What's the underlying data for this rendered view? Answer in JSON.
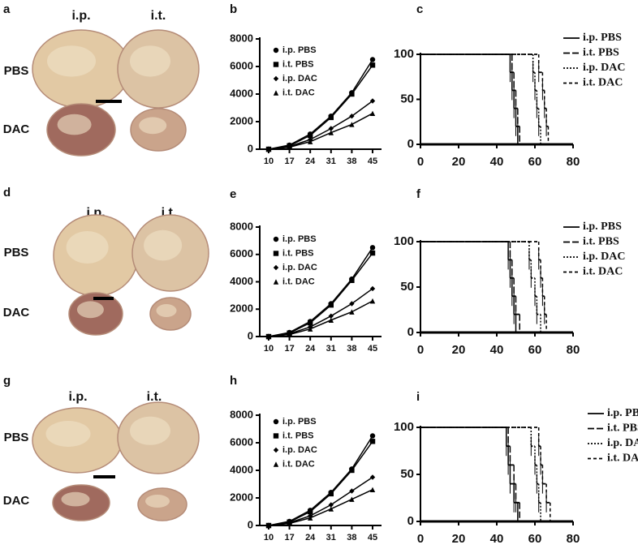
{
  "photo_panels": [
    {
      "label": "a",
      "columns": [
        "i.p.",
        "i.t."
      ],
      "rows": [
        "PBS",
        "DAC"
      ]
    },
    {
      "label": "d",
      "columns": [
        "i.p.",
        "i.t."
      ],
      "rows": [
        "PBS",
        "DAC"
      ]
    },
    {
      "label": "g",
      "columns": [
        "i.p.",
        "i.t."
      ],
      "rows": [
        "PBS",
        "DAC"
      ]
    }
  ],
  "chart_data": [
    {
      "type": "line",
      "title": "b",
      "x": [
        10,
        17,
        24,
        31,
        38,
        45
      ],
      "xlim": [
        7,
        48
      ],
      "xticks": [
        10,
        17,
        24,
        31,
        38,
        45
      ],
      "ylim": [
        0,
        8000
      ],
      "yticks": [
        0,
        2000,
        4000,
        6000,
        8000
      ],
      "series": [
        {
          "name": "i.p. PBS",
          "color": "#000000",
          "marker": "circle",
          "values": [
            0,
            300,
            1100,
            2400,
            4100,
            6500
          ]
        },
        {
          "name": "i.t. PBS",
          "color": "#000000",
          "marker": "square",
          "values": [
            0,
            250,
            1000,
            2300,
            4000,
            6100
          ]
        },
        {
          "name": "i.p. DAC",
          "color": "#000000",
          "marker": "diamond",
          "values": [
            0,
            200,
            700,
            1500,
            2400,
            3500
          ]
        },
        {
          "name": "i.t. DAC",
          "color": "#000000",
          "marker": "triangle",
          "values": [
            0,
            150,
            550,
            1200,
            1800,
            2600
          ]
        }
      ]
    },
    {
      "type": "step",
      "title": "c",
      "xlim": [
        0,
        80
      ],
      "xticks": [
        0,
        20,
        40,
        60,
        80
      ],
      "ylim": [
        0,
        100
      ],
      "yticks": [
        0,
        50,
        100
      ],
      "series": [
        {
          "name": "i.p. PBS",
          "color": "#000000",
          "dash": "solid",
          "x": [
            0,
            47,
            48,
            49,
            50,
            51
          ],
          "values": [
            100,
            80,
            60,
            40,
            20,
            0
          ]
        },
        {
          "name": "i.t. PBS",
          "color": "#000000",
          "dash": "long",
          "x": [
            0,
            48,
            49,
            50,
            51,
            52
          ],
          "values": [
            100,
            80,
            60,
            40,
            20,
            0
          ]
        },
        {
          "name": "i.p. DAC",
          "color": "#000000",
          "dash": "dotted",
          "x": [
            0,
            59,
            60,
            61,
            62,
            63
          ],
          "values": [
            100,
            80,
            60,
            40,
            20,
            0
          ]
        },
        {
          "name": "i.t. DAC",
          "color": "#000000",
          "dash": "short",
          "x": [
            0,
            62,
            64,
            65,
            66,
            67
          ],
          "values": [
            100,
            80,
            60,
            40,
            20,
            0
          ]
        }
      ]
    },
    {
      "type": "line",
      "title": "e",
      "x": [
        10,
        17,
        24,
        31,
        38,
        45
      ],
      "xlim": [
        7,
        48
      ],
      "xticks": [
        10,
        17,
        24,
        31,
        38,
        45
      ],
      "ylim": [
        0,
        8000
      ],
      "yticks": [
        0,
        2000,
        4000,
        6000,
        8000
      ],
      "series": [
        {
          "name": "i.p. PBS",
          "color": "#000000",
          "marker": "circle",
          "values": [
            0,
            300,
            1100,
            2400,
            4200,
            6500
          ]
        },
        {
          "name": "i.t. PBS",
          "color": "#000000",
          "marker": "square",
          "values": [
            0,
            250,
            1000,
            2300,
            4100,
            6100
          ]
        },
        {
          "name": "i.p. DAC",
          "color": "#000000",
          "marker": "diamond",
          "values": [
            0,
            200,
            700,
            1500,
            2400,
            3500
          ]
        },
        {
          "name": "i.t. DAC",
          "color": "#000000",
          "marker": "triangle",
          "values": [
            0,
            150,
            550,
            1200,
            1800,
            2600
          ]
        }
      ]
    },
    {
      "type": "step",
      "title": "f",
      "xlim": [
        0,
        80
      ],
      "xticks": [
        0,
        20,
        40,
        60,
        80
      ],
      "ylim": [
        0,
        100
      ],
      "yticks": [
        0,
        50,
        100
      ],
      "series": [
        {
          "name": "i.p. PBS",
          "color": "#000000",
          "dash": "solid",
          "x": [
            0,
            46,
            47,
            48,
            49,
            50
          ],
          "values": [
            100,
            80,
            60,
            40,
            20,
            0
          ]
        },
        {
          "name": "i.t. PBS",
          "color": "#000000",
          "dash": "long",
          "x": [
            0,
            47,
            48,
            49,
            50,
            52
          ],
          "values": [
            100,
            80,
            60,
            40,
            20,
            0
          ]
        },
        {
          "name": "i.p. DAC",
          "color": "#000000",
          "dash": "dotted",
          "x": [
            0,
            57,
            58,
            60,
            61,
            63
          ],
          "values": [
            100,
            80,
            60,
            40,
            20,
            0
          ]
        },
        {
          "name": "i.t. DAC",
          "color": "#000000",
          "dash": "short",
          "x": [
            0,
            62,
            63,
            64,
            65,
            66
          ],
          "values": [
            100,
            80,
            60,
            40,
            20,
            0
          ]
        }
      ]
    },
    {
      "type": "line",
      "title": "h",
      "x": [
        10,
        17,
        24,
        31,
        38,
        45
      ],
      "xlim": [
        7,
        48
      ],
      "xticks": [
        10,
        17,
        24,
        31,
        38,
        45
      ],
      "ylim": [
        0,
        8000
      ],
      "yticks": [
        0,
        2000,
        4000,
        6000,
        8000
      ],
      "series": [
        {
          "name": "i.p. PBS",
          "color": "#000000",
          "marker": "circle",
          "values": [
            0,
            300,
            1100,
            2400,
            4100,
            6500
          ]
        },
        {
          "name": "i.t. PBS",
          "color": "#000000",
          "marker": "square",
          "values": [
            0,
            250,
            1000,
            2300,
            4000,
            6100
          ]
        },
        {
          "name": "i.p. DAC",
          "color": "#000000",
          "marker": "diamond",
          "values": [
            0,
            200,
            700,
            1500,
            2500,
            3500
          ]
        },
        {
          "name": "i.t. DAC",
          "color": "#000000",
          "marker": "triangle",
          "values": [
            0,
            150,
            550,
            1200,
            1900,
            2600
          ]
        }
      ]
    },
    {
      "type": "step",
      "title": "i",
      "xlim": [
        0,
        80
      ],
      "xticks": [
        0,
        20,
        40,
        60,
        80
      ],
      "ylim": [
        0,
        100
      ],
      "yticks": [
        0,
        50,
        100
      ],
      "series": [
        {
          "name": "i.p. PBS",
          "color": "#000000",
          "dash": "solid",
          "x": [
            0,
            45,
            46,
            47,
            49,
            51
          ],
          "values": [
            100,
            80,
            60,
            40,
            20,
            0
          ]
        },
        {
          "name": "i.t. PBS",
          "color": "#000000",
          "dash": "long",
          "x": [
            0,
            46,
            47,
            49,
            50,
            52
          ],
          "values": [
            100,
            80,
            60,
            40,
            20,
            0
          ]
        },
        {
          "name": "i.p. DAC",
          "color": "#000000",
          "dash": "dotted",
          "x": [
            0,
            58,
            60,
            61,
            62,
            63
          ],
          "values": [
            100,
            80,
            60,
            40,
            20,
            0
          ]
        },
        {
          "name": "i.t. DAC",
          "color": "#000000",
          "dash": "short",
          "x": [
            0,
            62,
            63,
            64,
            66,
            68
          ],
          "values": [
            100,
            80,
            60,
            40,
            20,
            0
          ]
        }
      ]
    }
  ]
}
